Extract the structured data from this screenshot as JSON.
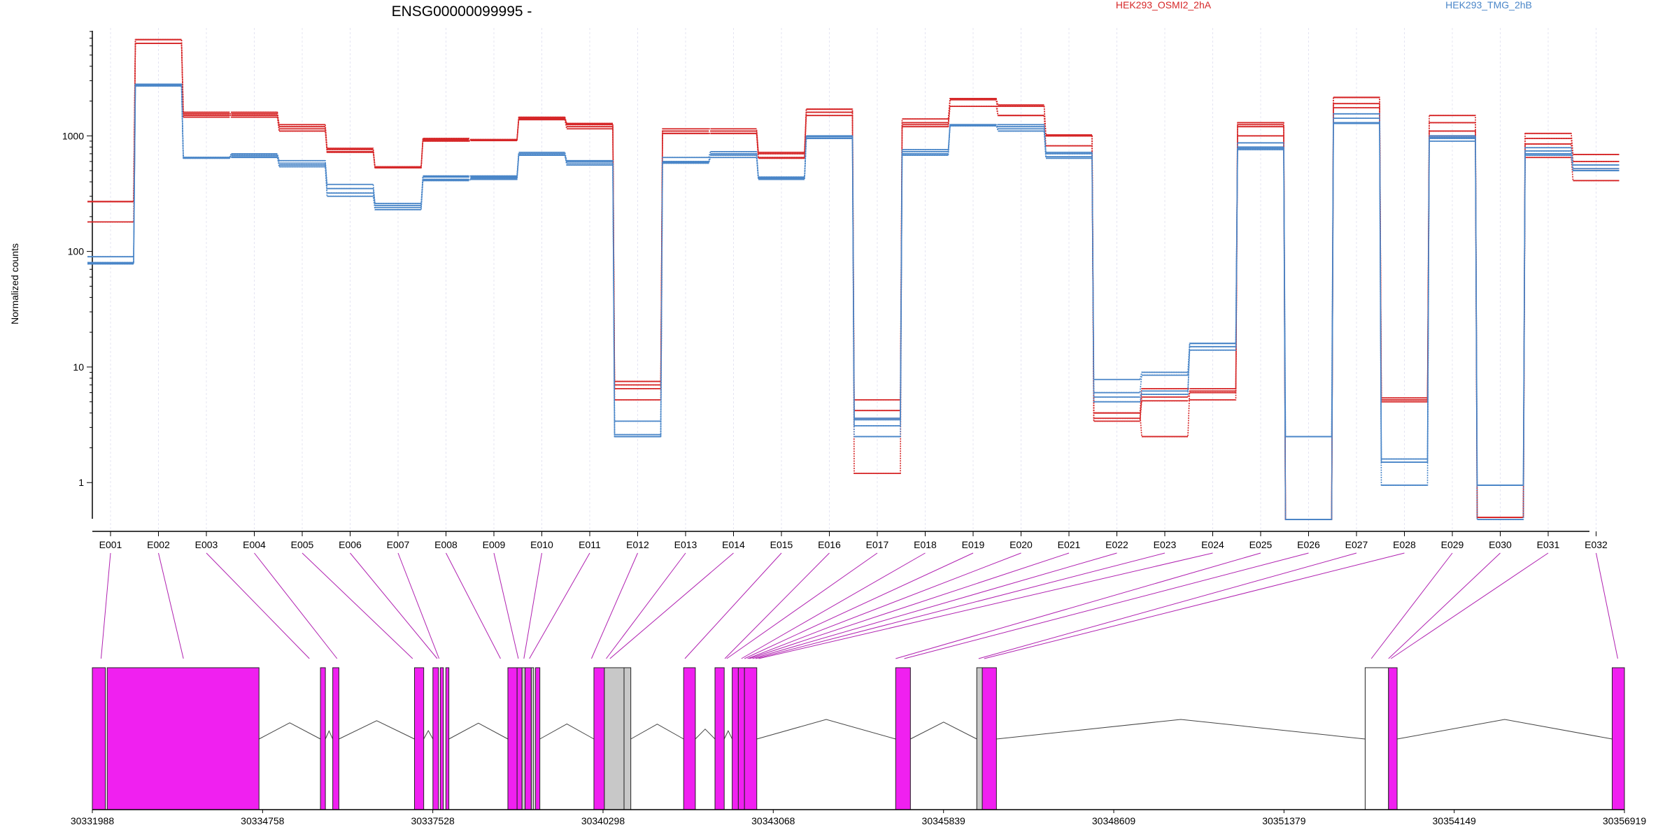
{
  "chart_data": {
    "type": "line",
    "title": "ENSG00000099995 -",
    "ylabel": "Normalized counts",
    "yscale": "log",
    "ylim": [
      0.5,
      8000
    ],
    "yticks": [
      "1",
      "10",
      "100",
      "1000"
    ],
    "grid": true,
    "legend_placement": "top-right",
    "categories": [
      "E001",
      "E002",
      "E003",
      "E004",
      "E005",
      "E006",
      "E007",
      "E008",
      "E009",
      "E010",
      "E011",
      "E012",
      "E013",
      "E014",
      "E015",
      "E016",
      "E017",
      "E018",
      "E019",
      "E020",
      "E021",
      "E022",
      "E023",
      "E024",
      "E025",
      "E026",
      "E027",
      "E028",
      "E029",
      "E030",
      "E031",
      "E032"
    ],
    "series": [
      {
        "name": "HEK293_OSMI2_2hA",
        "color": "#d62728",
        "replicates": [
          [
            270,
            6800,
            1600,
            1600,
            1250,
            780,
            540,
            950,
            930,
            1450,
            1280,
            7.5,
            1150,
            1150,
            720,
            1700,
            5.2,
            1400,
            2100,
            1850,
            1020,
            4.0,
            6.5,
            6.5,
            1300,
            0.48,
            2150,
            5.4,
            1500,
            0.5,
            1050,
            690
          ],
          [
            270,
            6300,
            1550,
            1550,
            1200,
            760,
            530,
            930,
            920,
            1420,
            1250,
            6.5,
            1100,
            1100,
            700,
            1600,
            4.2,
            1300,
            2050,
            1800,
            1000,
            3.6,
            5.5,
            6.0,
            1200,
            0.48,
            1900,
            5.2,
            1300,
            0.5,
            950,
            600
          ],
          [
            180,
            6300,
            1500,
            1500,
            1150,
            730,
            530,
            920,
            920,
            1400,
            1200,
            5.2,
            1050,
            1050,
            650,
            1500,
            3.6,
            1200,
            1800,
            1500,
            820,
            3.4,
            5.1,
            5.2,
            1000,
            0.48,
            1750,
            5.0,
            1100,
            0.5,
            850,
            520
          ],
          [
            270,
            6800,
            1450,
            1450,
            1100,
            720,
            530,
            900,
            910,
            1380,
            1150,
            7.0,
            1050,
            1050,
            640,
            1700,
            1.2,
            1250,
            2100,
            1500,
            1000,
            4.0,
            2.5,
            6.2,
            1250,
            0.48,
            2150,
            5.2,
            1000,
            0.5,
            650,
            410
          ]
        ]
      },
      {
        "name": "HEK293_TMG_2hB",
        "color": "#4a86c8",
        "replicates": [
          [
            90,
            2800,
            650,
            700,
            610,
            380,
            260,
            450,
            450,
            720,
            610,
            3.4,
            650,
            730,
            440,
            1000,
            3.5,
            760,
            1250,
            1250,
            720,
            7.8,
            9.0,
            16,
            870,
            2.5,
            1550,
            1.6,
            1000,
            0.95,
            790,
            560
          ],
          [
            80,
            2750,
            650,
            680,
            580,
            350,
            250,
            440,
            440,
            700,
            600,
            2.6,
            600,
            700,
            430,
            980,
            3.1,
            730,
            1230,
            1200,
            700,
            6.0,
            8.5,
            15,
            800,
            2.5,
            1420,
            1.5,
            970,
            0.95,
            740,
            520
          ],
          [
            80,
            2700,
            640,
            650,
            560,
            320,
            240,
            420,
            430,
            680,
            580,
            2.5,
            590,
            680,
            420,
            950,
            2.5,
            700,
            1220,
            1150,
            660,
            5.5,
            6.2,
            14,
            780,
            0.48,
            1300,
            0.95,
            950,
            0.95,
            700,
            500
          ],
          [
            78,
            2800,
            650,
            660,
            540,
            300,
            230,
            410,
            420,
            680,
            560,
            2.5,
            580,
            650,
            420,
            950,
            3.6,
            680,
            1250,
            1100,
            640,
            5.0,
            5.8,
            16,
            760,
            0.48,
            1280,
            1.5,
            900,
            0.48,
            680,
            500
          ]
        ]
      }
    ],
    "genomic_axis": {
      "tick_labels": [
        "30331988",
        "30334758",
        "30337528",
        "30340298",
        "30343068",
        "30345839",
        "30348609",
        "30351379",
        "30354149",
        "30356919"
      ],
      "tick_values": [
        30331988,
        30334758,
        30337528,
        30340298,
        30343068,
        30345839,
        30348609,
        30351379,
        30354149,
        30356919
      ]
    },
    "exon_blocks": [
      {
        "start": 30331988,
        "end": 30332200,
        "color": "magenta"
      },
      {
        "start": 30332230,
        "end": 30334700,
        "color": "magenta"
      },
      {
        "start": 30335700,
        "end": 30335780,
        "color": "magenta"
      },
      {
        "start": 30335900,
        "end": 30336000,
        "color": "magenta"
      },
      {
        "start": 30337230,
        "end": 30337380,
        "color": "magenta"
      },
      {
        "start": 30337530,
        "end": 30337620,
        "color": "magenta"
      },
      {
        "start": 30337650,
        "end": 30337700,
        "color": "magenta"
      },
      {
        "start": 30337740,
        "end": 30337790,
        "color": "magenta"
      },
      {
        "start": 30338750,
        "end": 30338900,
        "color": "magenta"
      },
      {
        "start": 30338900,
        "end": 30338980,
        "color": "magenta"
      },
      {
        "start": 30338980,
        "end": 30339030,
        "color": "grey"
      },
      {
        "start": 30339030,
        "end": 30339130,
        "color": "magenta"
      },
      {
        "start": 30339130,
        "end": 30339170,
        "color": "grey"
      },
      {
        "start": 30339200,
        "end": 30339270,
        "color": "magenta"
      },
      {
        "start": 30340150,
        "end": 30340320,
        "color": "magenta"
      },
      {
        "start": 30340320,
        "end": 30340640,
        "color": "grey"
      },
      {
        "start": 30340640,
        "end": 30340750,
        "color": "grey"
      },
      {
        "start": 30341610,
        "end": 30341800,
        "color": "magenta"
      },
      {
        "start": 30342120,
        "end": 30342270,
        "color": "magenta"
      },
      {
        "start": 30342400,
        "end": 30342500,
        "color": "magenta"
      },
      {
        "start": 30342500,
        "end": 30342600,
        "color": "magenta"
      },
      {
        "start": 30342600,
        "end": 30342800,
        "color": "magenta"
      },
      {
        "start": 30345060,
        "end": 30345300,
        "color": "magenta"
      },
      {
        "start": 30346380,
        "end": 30346470,
        "color": "grey"
      },
      {
        "start": 30346470,
        "end": 30346700,
        "color": "magenta"
      },
      {
        "start": 30352700,
        "end": 30353080,
        "color": "white"
      },
      {
        "start": 30353080,
        "end": 30353220,
        "color": "magenta"
      },
      {
        "start": 30356720,
        "end": 30356919,
        "color": "magenta"
      }
    ],
    "intron_arcs": [
      [
        30334700,
        30335700
      ],
      [
        30335780,
        30335900
      ],
      [
        30336000,
        30337230
      ],
      [
        30337380,
        30337530
      ],
      [
        30337790,
        30338750
      ],
      [
        30339270,
        30340150
      ],
      [
        30340750,
        30341610
      ],
      [
        30341800,
        30342120
      ],
      [
        30342270,
        30342400
      ],
      [
        30342800,
        30345060
      ],
      [
        30345300,
        30346380
      ],
      [
        30346700,
        30352700
      ],
      [
        30353220,
        30356720
      ]
    ],
    "exon_anchors": [
      30332130,
      30333470,
      30335520,
      30335970,
      30337200,
      30337600,
      30337630,
      30338630,
      30338920,
      30339010,
      30339100,
      30340110,
      30340350,
      30340410,
      30341630,
      30342280,
      30342310,
      30342550,
      30342600,
      30342650,
      30342680,
      30342730,
      30342780,
      30342830,
      30345060,
      30345200,
      30346410,
      30346500,
      30352800,
      30353080,
      30353120,
      30356810
    ]
  }
}
